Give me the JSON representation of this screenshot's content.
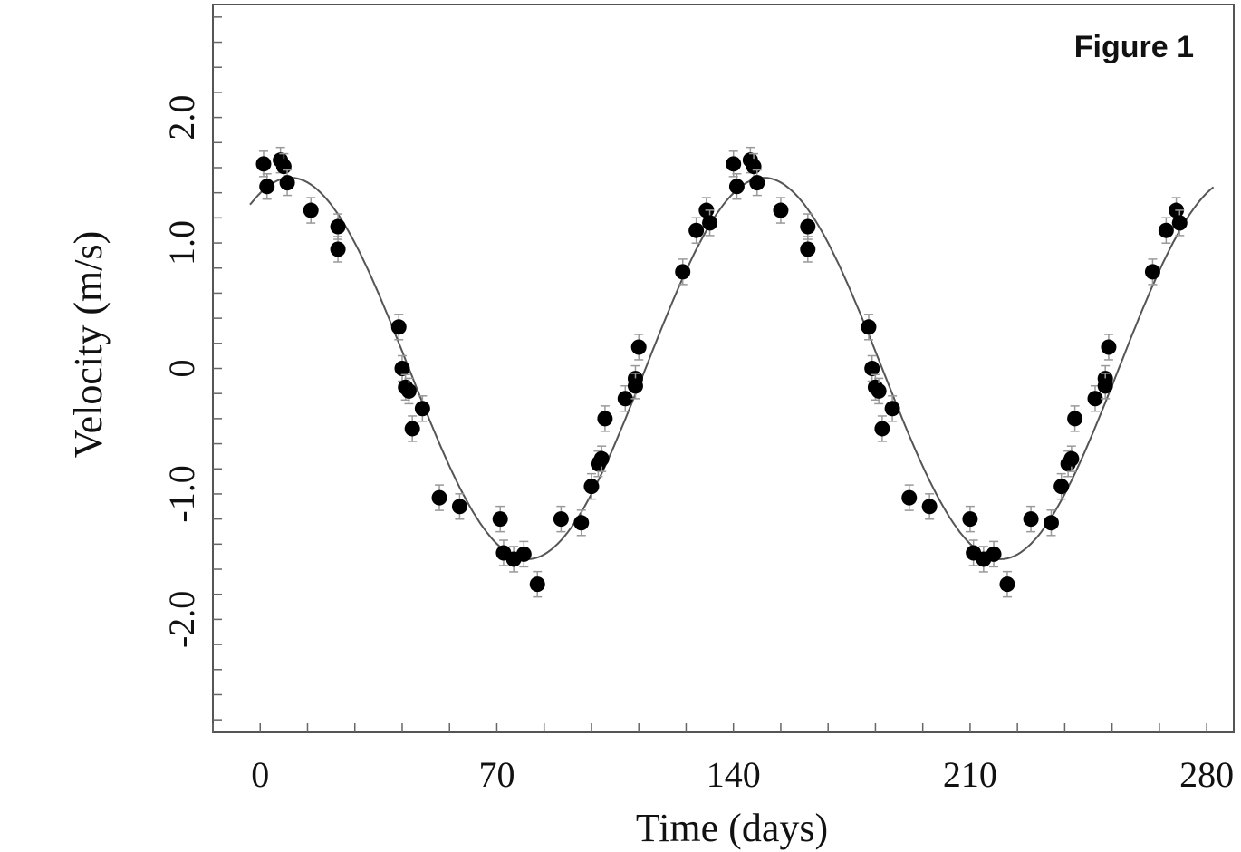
{
  "chart_data": {
    "type": "scatter",
    "title": "Figure 1",
    "xlabel": "Time (days)",
    "ylabel": "Velocity (m/s)",
    "xlim": [
      -14,
      288
    ],
    "ylim": [
      -2.9,
      2.9
    ],
    "x_ticks": [
      0,
      70,
      140,
      210,
      280
    ],
    "x_tick_labels": [
      "0",
      "70",
      "140",
      "210",
      "280"
    ],
    "y_ticks": [
      -2.0,
      -1.0,
      0,
      1.0,
      2.0
    ],
    "y_tick_labels": [
      "-2.0",
      "-1.0",
      "0",
      "1.0",
      "2.0"
    ],
    "grid": false,
    "fit": {
      "model": "sinusoid",
      "amplitude": 1.52,
      "period_days": 140,
      "peak_day": 9
    },
    "series": [
      {
        "points": [
          {
            "x": 1,
            "y": 1.63
          },
          {
            "x": 2,
            "y": 1.45
          },
          {
            "x": 6,
            "y": 1.66
          },
          {
            "x": 7,
            "y": 1.61
          },
          {
            "x": 8,
            "y": 1.48
          },
          {
            "x": 15,
            "y": 1.26
          },
          {
            "x": 23,
            "y": 1.13
          },
          {
            "x": 23,
            "y": 0.95
          },
          {
            "x": 41,
            "y": 0.33
          },
          {
            "x": 42,
            "y": 0.0
          },
          {
            "x": 43,
            "y": -0.15
          },
          {
            "x": 44,
            "y": -0.18
          },
          {
            "x": 45,
            "y": -0.48
          },
          {
            "x": 48,
            "y": -0.32
          },
          {
            "x": 53,
            "y": -1.03
          },
          {
            "x": 59,
            "y": -1.1
          },
          {
            "x": 71,
            "y": -1.2
          },
          {
            "x": 72,
            "y": -1.47
          },
          {
            "x": 75,
            "y": -1.52
          },
          {
            "x": 78,
            "y": -1.48
          },
          {
            "x": 82,
            "y": -1.72
          },
          {
            "x": 89,
            "y": -1.2
          },
          {
            "x": 95,
            "y": -1.23
          },
          {
            "x": 98,
            "y": -0.94
          },
          {
            "x": 100,
            "y": -0.76
          },
          {
            "x": 101,
            "y": -0.72
          },
          {
            "x": 102,
            "y": -0.4
          },
          {
            "x": 108,
            "y": -0.24
          },
          {
            "x": 111,
            "y": -0.08
          },
          {
            "x": 111,
            "y": -0.14
          },
          {
            "x": 112,
            "y": 0.17
          },
          {
            "x": 125,
            "y": 0.77
          },
          {
            "x": 129,
            "y": 1.1
          },
          {
            "x": 132,
            "y": 1.26
          },
          {
            "x": 133,
            "y": 1.16
          },
          {
            "x": 140,
            "y": 1.63
          },
          {
            "x": 141,
            "y": 1.45
          },
          {
            "x": 145,
            "y": 1.66
          },
          {
            "x": 146,
            "y": 1.61
          },
          {
            "x": 147,
            "y": 1.48
          },
          {
            "x": 154,
            "y": 1.26
          },
          {
            "x": 162,
            "y": 1.13
          },
          {
            "x": 162,
            "y": 0.95
          },
          {
            "x": 180,
            "y": 0.33
          },
          {
            "x": 181,
            "y": 0.0
          },
          {
            "x": 182,
            "y": -0.15
          },
          {
            "x": 183,
            "y": -0.18
          },
          {
            "x": 184,
            "y": -0.48
          },
          {
            "x": 187,
            "y": -0.32
          },
          {
            "x": 192,
            "y": -1.03
          },
          {
            "x": 198,
            "y": -1.1
          },
          {
            "x": 210,
            "y": -1.2
          },
          {
            "x": 211,
            "y": -1.47
          },
          {
            "x": 214,
            "y": -1.52
          },
          {
            "x": 217,
            "y": -1.48
          },
          {
            "x": 221,
            "y": -1.72
          },
          {
            "x": 228,
            "y": -1.2
          },
          {
            "x": 234,
            "y": -1.23
          },
          {
            "x": 237,
            "y": -0.94
          },
          {
            "x": 239,
            "y": -0.76
          },
          {
            "x": 240,
            "y": -0.72
          },
          {
            "x": 241,
            "y": -0.4
          },
          {
            "x": 247,
            "y": -0.24
          },
          {
            "x": 250,
            "y": -0.08
          },
          {
            "x": 250,
            "y": -0.14
          },
          {
            "x": 251,
            "y": 0.17
          },
          {
            "x": 264,
            "y": 0.77
          },
          {
            "x": 268,
            "y": 1.1
          },
          {
            "x": 271,
            "y": 1.26
          },
          {
            "x": 272,
            "y": 1.16
          }
        ]
      }
    ]
  }
}
